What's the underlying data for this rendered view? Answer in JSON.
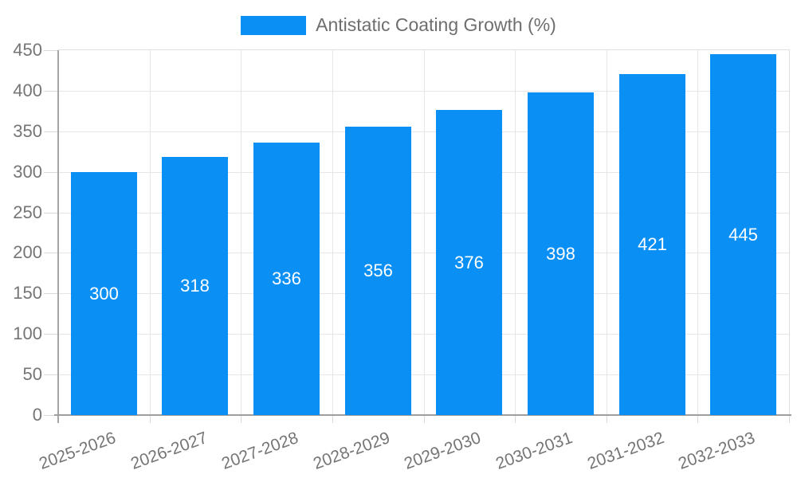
{
  "chart_data": {
    "type": "bar",
    "title": "Antistatic Coating Growth (%)",
    "categories": [
      "2025-2026",
      "2026-2027",
      "2027-2028",
      "2028-2029",
      "2029-2030",
      "2030-2031",
      "2031-2032",
      "2032-2033"
    ],
    "values": [
      300,
      318,
      336,
      356,
      376,
      398,
      421,
      445
    ],
    "xlabel": "",
    "ylabel": "",
    "ylim": [
      0,
      450
    ],
    "yticks": [
      0,
      50,
      100,
      150,
      200,
      250,
      300,
      350,
      400,
      450
    ],
    "grid": true,
    "legend_position": "top-center",
    "bar_color": "#0a8ff5",
    "bar_label_color": "#ffffff",
    "axis_text_color": "#757575",
    "gridline_color": "#e6e6e6",
    "axis_line_color": "#a6a6a6"
  }
}
